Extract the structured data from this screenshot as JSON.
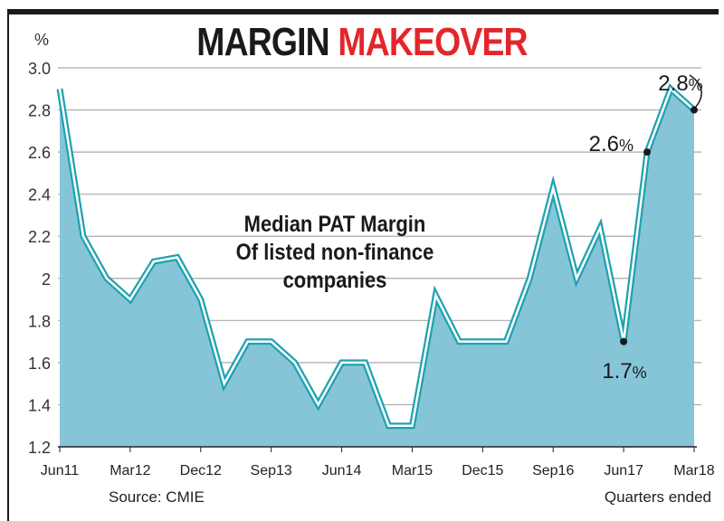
{
  "title": {
    "part1": "MARGIN",
    "part2": "MAKEOVER"
  },
  "footer": {
    "source": "Source: CMIE",
    "note": "Quarters ended"
  },
  "colors": {
    "fill": "#86c5d8",
    "line": "#1fa2b0",
    "title_red": "#e3262b"
  },
  "chart_data": {
    "type": "area",
    "ylabel": "%",
    "ylim": [
      1.2,
      3.0
    ],
    "yticks": [
      "1.2",
      "1.4",
      "1.6",
      "1.8",
      "2",
      "2.2",
      "2.4",
      "2.6",
      "2.8",
      "3.0"
    ],
    "grid": true,
    "x": [
      "Jun11",
      "Sep11",
      "Dec11",
      "Mar12",
      "Jun12",
      "Sep12",
      "Dec12",
      "Mar13",
      "Jun13",
      "Sep13",
      "Dec13",
      "Mar14",
      "Jun14",
      "Sep14",
      "Dec14",
      "Mar15",
      "Jun15",
      "Sep15",
      "Dec15",
      "Mar16",
      "Jun16",
      "Sep16",
      "Dec16",
      "Mar17",
      "Jun17",
      "Sep17",
      "Dec17",
      "Mar18"
    ],
    "xtick_labels": [
      "Jun11",
      "Mar12",
      "Dec12",
      "Sep13",
      "Jun14",
      "Mar15",
      "Dec15",
      "Sep16",
      "Jun17",
      "Mar18"
    ],
    "values": [
      2.9,
      2.2,
      2.0,
      1.9,
      2.08,
      2.1,
      1.9,
      1.5,
      1.7,
      1.7,
      1.6,
      1.4,
      1.6,
      1.6,
      1.3,
      1.3,
      1.92,
      1.7,
      1.7,
      1.7,
      2.0,
      2.43,
      2.0,
      2.24,
      1.7,
      2.6,
      2.9,
      2.8
    ],
    "annotation_text": "Median PAT Margin\nOf listed non-finance\ncompanies",
    "annotation_lines": [
      "Median PAT Margin",
      "Of listed non-finance",
      "companies"
    ],
    "point_labels": [
      {
        "x": "Jun17",
        "num": "1.7",
        "unit": "%"
      },
      {
        "x": "Sep17",
        "num": "2.6",
        "unit": "%"
      },
      {
        "x": "Mar18",
        "num": "2.8",
        "unit": "%"
      }
    ]
  }
}
